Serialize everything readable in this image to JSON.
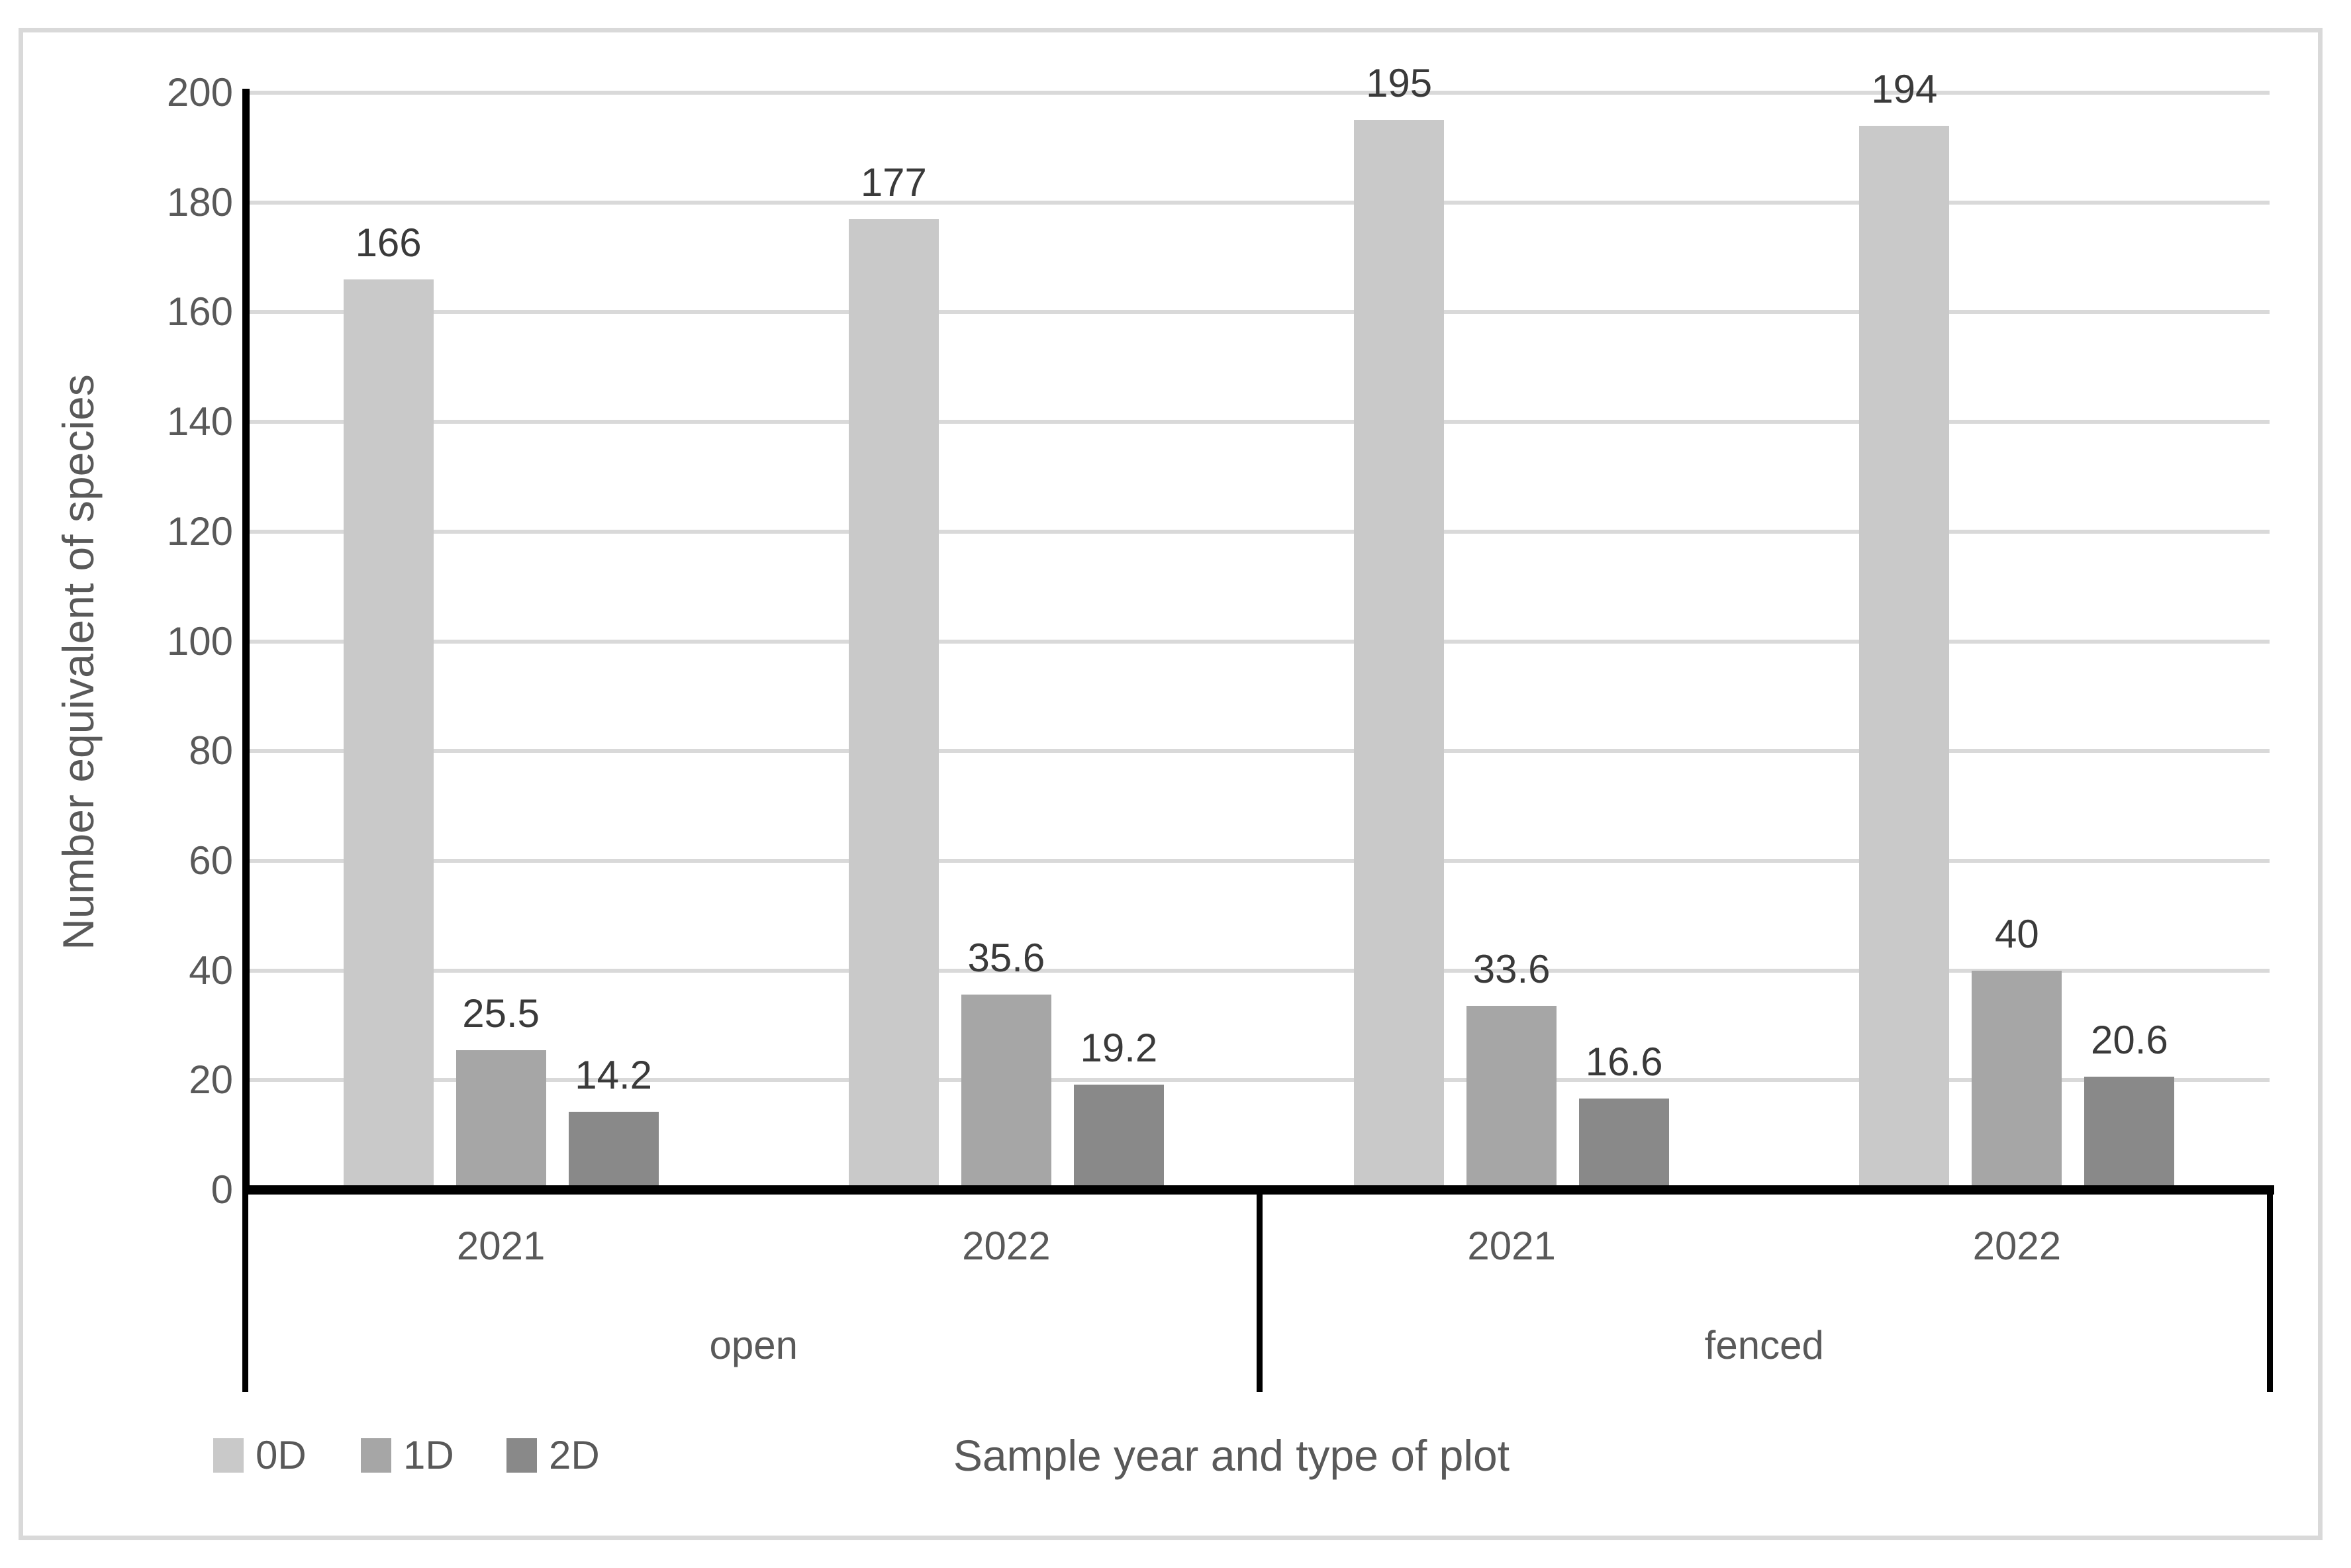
{
  "figure": {
    "background": "#ffffff",
    "border_color": "#d9d9d9"
  },
  "chart_data": {
    "type": "bar",
    "title": "",
    "ylabel": "Number equivalent of species",
    "xlabel": "Sample year and type of plot",
    "ylim": [
      0,
      200
    ],
    "ytick_step": 20,
    "yticks": [
      0,
      20,
      40,
      60,
      80,
      100,
      120,
      140,
      160,
      180,
      200
    ],
    "grid": true,
    "legend_position": "bottom-left",
    "axis_color": "#000000",
    "grid_color": "#d9d9d9",
    "tick_text_color": "#595959",
    "data_label_color": "#3a3a3a",
    "groups": [
      {
        "label": "open",
        "years": [
          "2021",
          "2022"
        ]
      },
      {
        "label": "fenced",
        "years": [
          "2021",
          "2022"
        ]
      }
    ],
    "categories": [
      "2021",
      "2022",
      "2021",
      "2022"
    ],
    "series": [
      {
        "name": "0D",
        "color": "#c9c9c9",
        "values": [
          166,
          177,
          195,
          194
        ],
        "labels": [
          "166",
          "177",
          "195",
          "194"
        ]
      },
      {
        "name": "1D",
        "color": "#a6a6a6",
        "values": [
          25.5,
          35.6,
          33.6,
          40
        ],
        "labels": [
          "25.5",
          "35.6",
          "33.6",
          "40"
        ]
      },
      {
        "name": "2D",
        "color": "#898989",
        "values": [
          14.2,
          19.2,
          16.6,
          20.6
        ],
        "labels": [
          "14.2",
          "19.2",
          "16.6",
          "20.6"
        ]
      }
    ]
  }
}
